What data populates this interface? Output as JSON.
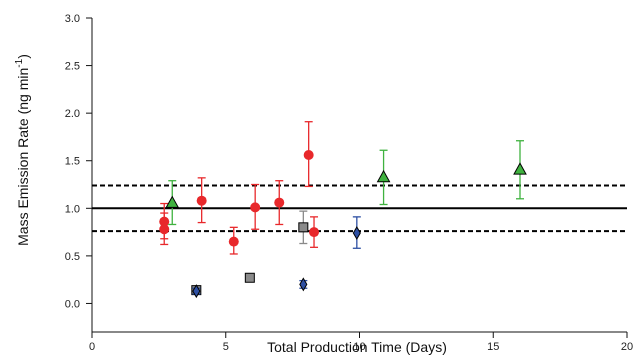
{
  "chart_data": {
    "type": "scatter",
    "xlabel": "Total Production Time (Days)",
    "ylabel_main": "Mass Emission Rate (ng min",
    "ylabel_sup": "-1",
    "ylabel_end": ")",
    "xlim": [
      0,
      20
    ],
    "ylim": [
      -0.3,
      3.0
    ],
    "x_ticks": [
      0,
      5,
      10,
      15,
      20
    ],
    "x_tick_labels": [
      "0",
      "5",
      "10",
      "15",
      "20"
    ],
    "y_ticks": [
      0.0,
      0.5,
      1.0,
      1.5,
      2.0,
      2.5,
      3.0
    ],
    "y_tick_labels": [
      "0.0",
      "0.5",
      "1.0",
      "1.5",
      "2.0",
      "2.5",
      "3.0"
    ],
    "grid": false,
    "reference_lines": [
      {
        "y": 1.0,
        "style": "solid"
      },
      {
        "y": 1.24,
        "style": "dashed"
      },
      {
        "y": 0.76,
        "style": "dashed"
      }
    ],
    "series": [
      {
        "marker": "circle",
        "color": "#e8282b",
        "points": [
          {
            "x": 2.7,
            "y": 0.86,
            "lo": 0.68,
            "hi": 1.05
          },
          {
            "x": 2.7,
            "y": 0.78,
            "lo": 0.62,
            "hi": 0.95
          },
          {
            "x": 4.1,
            "y": 1.08,
            "lo": 0.85,
            "hi": 1.32
          },
          {
            "x": 5.3,
            "y": 0.65,
            "lo": 0.52,
            "hi": 0.8
          },
          {
            "x": 6.1,
            "y": 1.01,
            "lo": 0.78,
            "hi": 1.25
          },
          {
            "x": 7.0,
            "y": 1.06,
            "lo": 0.83,
            "hi": 1.29
          },
          {
            "x": 8.1,
            "y": 1.56,
            "lo": 1.23,
            "hi": 1.91
          },
          {
            "x": 8.3,
            "y": 0.75,
            "lo": 0.59,
            "hi": 0.91
          }
        ]
      },
      {
        "marker": "triangle",
        "color": "#3fb23f",
        "points": [
          {
            "x": 3.0,
            "y": 1.06,
            "lo": 0.83,
            "hi": 1.29
          },
          {
            "x": 10.9,
            "y": 1.33,
            "lo": 1.04,
            "hi": 1.61
          },
          {
            "x": 16.0,
            "y": 1.41,
            "lo": 1.1,
            "hi": 1.71
          }
        ]
      },
      {
        "marker": "square",
        "color": "#8a8a8a",
        "points": [
          {
            "x": 3.9,
            "y": 0.14,
            "lo": 0.12,
            "hi": 0.16
          },
          {
            "x": 5.9,
            "y": 0.27,
            "lo": 0.27,
            "hi": 0.27
          },
          {
            "x": 7.9,
            "y": 0.8,
            "lo": 0.63,
            "hi": 0.97
          }
        ]
      },
      {
        "marker": "diamond",
        "color": "#2d4fa3",
        "points": [
          {
            "x": 3.9,
            "y": 0.13,
            "lo": 0.1,
            "hi": 0.16
          },
          {
            "x": 7.9,
            "y": 0.2,
            "lo": 0.16,
            "hi": 0.24
          },
          {
            "x": 9.9,
            "y": 0.74,
            "lo": 0.58,
            "hi": 0.91
          }
        ]
      }
    ]
  }
}
